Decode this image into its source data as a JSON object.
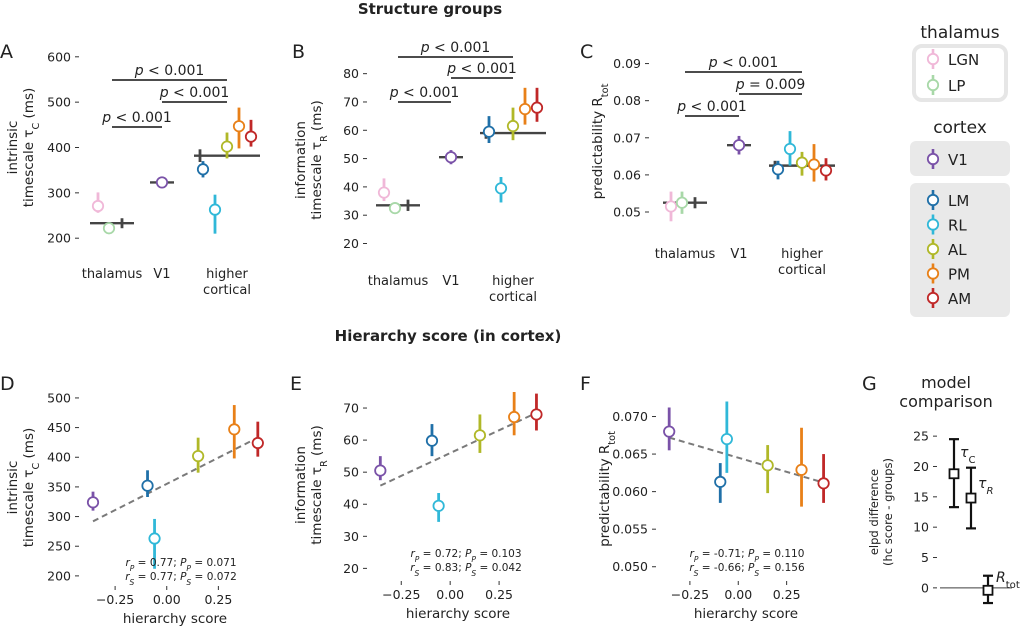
{
  "section_titles": {
    "top": "Structure groups",
    "bottom": "Hierarchy score (in cortex)"
  },
  "panel_letters": [
    "A",
    "B",
    "C",
    "D",
    "E",
    "F",
    "G"
  ],
  "colors": {
    "LGN": "#f0b8d8",
    "LP": "#a8d8a8",
    "V1": "#7a52a8",
    "LM": "#2070a8",
    "RL": "#30b8d8",
    "AL": "#b0b828",
    "PM": "#e88018",
    "AM": "#c02828",
    "group": "#444444",
    "fit": "#7a7a7a"
  },
  "legend": {
    "thalamus_title": "thalamus",
    "thalamus_items": [
      "LGN",
      "LP"
    ],
    "cortex_title": "cortex",
    "v1_items": [
      "V1"
    ],
    "higher_items": [
      "LM",
      "RL",
      "AL",
      "PM",
      "AM"
    ]
  },
  "group_labels": [
    "thalamus",
    "V1",
    "higher",
    "cortical"
  ],
  "g_panel": {
    "title1": "model",
    "title2": "comparison",
    "ylabel1": "elpd difference",
    "ylabel2": "(hc score - groups)",
    "yticks": [
      0,
      5,
      10,
      15,
      20,
      25
    ],
    "ylim": [
      -2,
      27
    ],
    "labels": [
      "τ",
      "C",
      "τ",
      "R",
      "R",
      "tot"
    ]
  },
  "chart_data": [
    {
      "id": "A",
      "type": "scatter",
      "ylabel": [
        "intrinsic",
        "timescale τ",
        "C",
        " (ms)"
      ],
      "ylim": [
        185,
        615
      ],
      "yticks": [
        200,
        300,
        400,
        500,
        600
      ],
      "groups": {
        "thalamus": {
          "mean": 233,
          "lo": 222,
          "hi": 244
        },
        "V1": {
          "mean": 323
        },
        "higher": {
          "mean": 382,
          "lo": 368,
          "hi": 396
        }
      },
      "points": [
        {
          "area": "LGN",
          "group": "thalamus",
          "mean": 271,
          "lo": 256,
          "hi": 301
        },
        {
          "area": "LP",
          "group": "thalamus",
          "mean": 222,
          "lo": 212,
          "hi": 234
        },
        {
          "area": "V1",
          "group": "V1",
          "mean": 323,
          "lo": 311,
          "hi": 336
        },
        {
          "area": "LM",
          "group": "higher",
          "mean": 352,
          "lo": 334,
          "hi": 370
        },
        {
          "area": "RL",
          "group": "higher",
          "mean": 263,
          "lo": 210,
          "hi": 296
        },
        {
          "area": "AL",
          "group": "higher",
          "mean": 402,
          "lo": 376,
          "hi": 433
        },
        {
          "area": "PM",
          "group": "higher",
          "mean": 447,
          "lo": 398,
          "hi": 488
        },
        {
          "area": "AM",
          "group": "higher",
          "mean": 424,
          "lo": 402,
          "hi": 461
        }
      ],
      "sig": [
        {
          "from": "thalamus",
          "to": "V1",
          "text": "p < 0.001",
          "level": 0
        },
        {
          "from": "V1",
          "to": "higher",
          "text": "p < 0.001",
          "level": 1
        },
        {
          "from": "thalamus",
          "to": "higher",
          "text": "p < 0.001",
          "level": 2
        }
      ]
    },
    {
      "id": "B",
      "type": "scatter",
      "ylabel": [
        "information",
        "timescale τ",
        "R",
        " (ms)"
      ],
      "ylim": [
        17,
        82
      ],
      "yticks": [
        20,
        30,
        40,
        50,
        60,
        70,
        80
      ],
      "groups": {
        "thalamus": {
          "mean": 33.5,
          "lo": 31.5,
          "hi": 35.5
        },
        "V1": {
          "mean": 50.5
        },
        "higher": {
          "mean": 59,
          "lo": 57,
          "hi": 61
        }
      },
      "points": [
        {
          "area": "LGN",
          "group": "thalamus",
          "mean": 38,
          "lo": 35,
          "hi": 43
        },
        {
          "area": "LP",
          "group": "thalamus",
          "mean": 32.5,
          "lo": 30.5,
          "hi": 34.5
        },
        {
          "area": "V1",
          "group": "V1",
          "mean": 50.5,
          "lo": 48,
          "hi": 53
        },
        {
          "area": "LM",
          "group": "higher",
          "mean": 59.5,
          "lo": 55.5,
          "hi": 65
        },
        {
          "area": "RL",
          "group": "higher",
          "mean": 39.5,
          "lo": 34.5,
          "hi": 43.5
        },
        {
          "area": "AL",
          "group": "higher",
          "mean": 61.5,
          "lo": 56.5,
          "hi": 68
        },
        {
          "area": "PM",
          "group": "higher",
          "mean": 67.5,
          "lo": 62,
          "hi": 75
        },
        {
          "area": "AM",
          "group": "higher",
          "mean": 68,
          "lo": 63,
          "hi": 75
        }
      ],
      "sig": [
        {
          "from": "thalamus",
          "to": "V1",
          "text": "p < 0.001",
          "level": 0
        },
        {
          "from": "V1",
          "to": "higher",
          "text": "p < 0.001",
          "level": 1
        },
        {
          "from": "thalamus",
          "to": "higher",
          "text": "p < 0.001",
          "level": 2
        }
      ]
    },
    {
      "id": "C",
      "type": "scatter",
      "ylabel": [
        "predictability R",
        "tot"
      ],
      "ylim": [
        0.0465,
        0.0915
      ],
      "yticks": [
        0.05,
        0.06,
        0.07,
        0.08,
        0.09
      ],
      "groups": {
        "thalamus": {
          "mean": 0.0525,
          "lo": 0.051,
          "hi": 0.054
        },
        "V1": {
          "mean": 0.068
        },
        "higher": {
          "mean": 0.0625,
          "lo": 0.0612,
          "hi": 0.0638
        }
      },
      "points": [
        {
          "area": "LGN",
          "group": "thalamus",
          "mean": 0.0515,
          "lo": 0.0475,
          "hi": 0.0555
        },
        {
          "area": "LP",
          "group": "thalamus",
          "mean": 0.0525,
          "lo": 0.0495,
          "hi": 0.0555
        },
        {
          "area": "V1",
          "group": "V1",
          "mean": 0.068,
          "lo": 0.0655,
          "hi": 0.0705
        },
        {
          "area": "LM",
          "group": "higher",
          "mean": 0.0615,
          "lo": 0.0588,
          "hi": 0.0638
        },
        {
          "area": "RL",
          "group": "higher",
          "mean": 0.067,
          "lo": 0.0625,
          "hi": 0.0718
        },
        {
          "area": "AL",
          "group": "higher",
          "mean": 0.0633,
          "lo": 0.0598,
          "hi": 0.0662
        },
        {
          "area": "PM",
          "group": "higher",
          "mean": 0.0628,
          "lo": 0.0582,
          "hi": 0.0683
        },
        {
          "area": "AM",
          "group": "higher",
          "mean": 0.0612,
          "lo": 0.0585,
          "hi": 0.0645
        }
      ],
      "sig": [
        {
          "from": "thalamus",
          "to": "V1",
          "text": "p < 0.001",
          "level": 0
        },
        {
          "from": "V1",
          "to": "higher",
          "text": "p = 0.009",
          "level": 1
        },
        {
          "from": "thalamus",
          "to": "higher",
          "text": "p < 0.001",
          "level": 2
        }
      ]
    },
    {
      "id": "D",
      "type": "scatter",
      "xlabel": "hierarchy score",
      "ylabel": [
        "intrinsic",
        "timescale τ",
        "C",
        " (ms)"
      ],
      "xlim": [
        -0.42,
        0.5
      ],
      "xticks": [
        -0.25,
        0,
        0.25
      ],
      "xticklabels": [
        "−0.25",
        "0.00",
        "0.25"
      ],
      "ylim": [
        188,
        510
      ],
      "yticks": [
        200,
        250,
        300,
        350,
        400,
        450,
        500
      ],
      "points": [
        {
          "area": "V1",
          "x": -0.357,
          "mean": 324,
          "lo": 310,
          "hi": 342
        },
        {
          "area": "LM",
          "x": -0.093,
          "mean": 352,
          "lo": 333,
          "hi": 378
        },
        {
          "area": "RL",
          "x": -0.059,
          "mean": 263,
          "lo": 212,
          "hi": 296
        },
        {
          "area": "AL",
          "x": 0.152,
          "mean": 402,
          "lo": 374,
          "hi": 433
        },
        {
          "area": "PM",
          "x": 0.327,
          "mean": 447,
          "lo": 398,
          "hi": 488
        },
        {
          "area": "AM",
          "x": 0.441,
          "mean": 424,
          "lo": 401,
          "hi": 460
        }
      ],
      "fit": {
        "x": [
          -0.357,
          0.441
        ],
        "y": [
          292,
          433
        ]
      },
      "stats": [
        [
          "r",
          "P",
          " = 0.77; ",
          "P",
          "P",
          " = 0.071"
        ],
        [
          "r",
          "S",
          " = 0.77; ",
          "P",
          "S",
          " = 0.072"
        ]
      ]
    },
    {
      "id": "E",
      "type": "scatter",
      "xlabel": "hierarchy score",
      "ylabel": [
        "information",
        "timescale τ",
        "R",
        " (ms)"
      ],
      "xlim": [
        -0.42,
        0.5
      ],
      "xticks": [
        -0.25,
        0,
        0.25
      ],
      "xticklabels": [
        "−0.25",
        "0.00",
        "0.25"
      ],
      "ylim": [
        17,
        75
      ],
      "yticks": [
        20,
        30,
        40,
        50,
        60,
        70
      ],
      "points": [
        {
          "area": "V1",
          "x": -0.357,
          "mean": 50.5,
          "lo": 47.5,
          "hi": 55
        },
        {
          "area": "LM",
          "x": -0.093,
          "mean": 59.8,
          "lo": 55,
          "hi": 65
        },
        {
          "area": "RL",
          "x": -0.059,
          "mean": 39.5,
          "lo": 34.5,
          "hi": 43.5
        },
        {
          "area": "AL",
          "x": 0.152,
          "mean": 61.5,
          "lo": 56,
          "hi": 68
        },
        {
          "area": "PM",
          "x": 0.327,
          "mean": 67.2,
          "lo": 61.5,
          "hi": 75
        },
        {
          "area": "AM",
          "x": 0.441,
          "mean": 68,
          "lo": 63,
          "hi": 74.5
        }
      ],
      "fit": {
        "x": [
          -0.357,
          0.441
        ],
        "y": [
          45.8,
          68.5
        ]
      },
      "stats": [
        [
          "r",
          "P",
          " = 0.72; ",
          "P",
          "P",
          " = 0.103"
        ],
        [
          "r",
          "S",
          " = 0.83; ",
          "P",
          "S",
          " = 0.042"
        ]
      ]
    },
    {
      "id": "F",
      "type": "scatter",
      "xlabel": "hierarchy score",
      "ylabel": [
        "predictability R",
        "tot"
      ],
      "xlim": [
        -0.42,
        0.5
      ],
      "xticks": [
        -0.25,
        0,
        0.25
      ],
      "xticklabels": [
        "−0.25",
        "0.00",
        "0.25"
      ],
      "ylim": [
        0.0485,
        0.0722
      ],
      "yticks": [
        0.05,
        0.055,
        0.06,
        0.065,
        0.07
      ],
      "yticklabels": [
        "0.050",
        "0.055",
        "0.060",
        "0.065",
        "0.070"
      ],
      "points": [
        {
          "area": "V1",
          "x": -0.357,
          "mean": 0.068,
          "lo": 0.0655,
          "hi": 0.0712
        },
        {
          "area": "LM",
          "x": -0.093,
          "mean": 0.0613,
          "lo": 0.0585,
          "hi": 0.0638
        },
        {
          "area": "RL",
          "x": -0.059,
          "mean": 0.067,
          "lo": 0.0625,
          "hi": 0.072
        },
        {
          "area": "AL",
          "x": 0.152,
          "mean": 0.0635,
          "lo": 0.0598,
          "hi": 0.0662
        },
        {
          "area": "PM",
          "x": 0.327,
          "mean": 0.0629,
          "lo": 0.058,
          "hi": 0.0685
        },
        {
          "area": "AM",
          "x": 0.441,
          "mean": 0.0611,
          "lo": 0.0585,
          "hi": 0.065
        }
      ],
      "fit": {
        "x": [
          -0.357,
          0.441
        ],
        "y": [
          0.0672,
          0.0612
        ]
      },
      "stats": [
        [
          "r",
          "P",
          " = -0.71; ",
          "P",
          "P",
          " = 0.110"
        ],
        [
          "r",
          "S",
          " = -0.66; ",
          "P",
          "S",
          " = 0.156"
        ]
      ]
    },
    {
      "id": "G",
      "type": "scatter",
      "points": [
        {
          "name": "tau_C",
          "mean": 18.8,
          "lo": 13.3,
          "hi": 24.5
        },
        {
          "name": "tau_R",
          "mean": 14.8,
          "lo": 9.8,
          "hi": 19.8
        },
        {
          "name": "R_tot",
          "mean": -0.4,
          "lo": -2.5,
          "hi": 2
        }
      ]
    }
  ]
}
